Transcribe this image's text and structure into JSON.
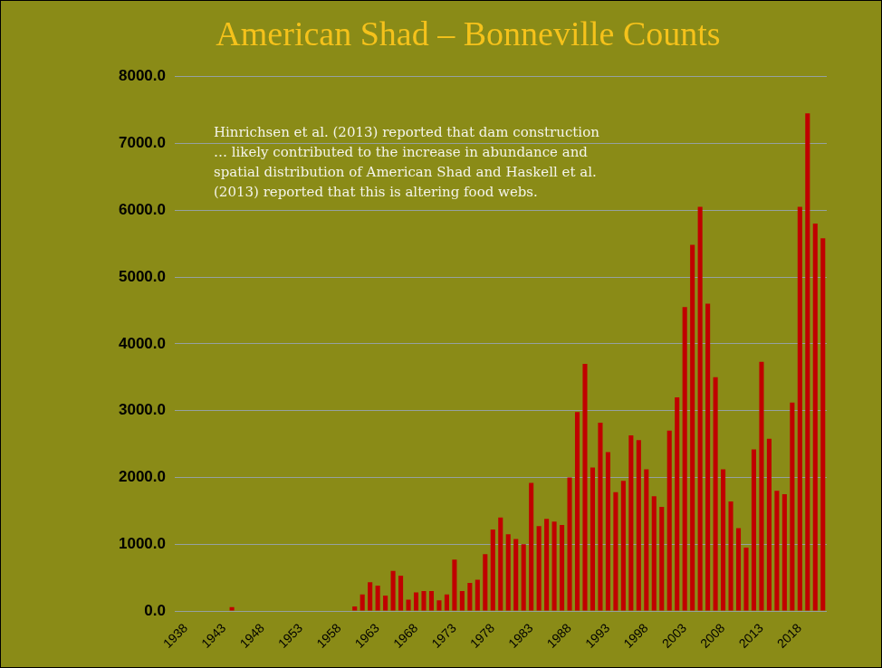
{
  "chart_data": {
    "type": "bar",
    "title": "American Shad – Bonneville Counts",
    "annotation": "Hinrichsen et al. (2013) reported that dam construction … likely contributed to the increase in abundance and spatial distribution of American Shad and Haskell et al. (2013) reported that this is altering food webs.",
    "categories": [
      "1938",
      null,
      null,
      null,
      null,
      "1943",
      null,
      null,
      null,
      null,
      "1948",
      null,
      null,
      null,
      null,
      "1953",
      null,
      null,
      null,
      null,
      "1958",
      null,
      null,
      null,
      null,
      "1963",
      null,
      null,
      null,
      null,
      "1968",
      null,
      null,
      null,
      null,
      "1973",
      null,
      null,
      null,
      null,
      "1978",
      null,
      null,
      null,
      null,
      "1983",
      null,
      null,
      null,
      null,
      "1988",
      null,
      null,
      null,
      null,
      "1993",
      null,
      null,
      null,
      null,
      "1998",
      null,
      null,
      null,
      null,
      "2003",
      null,
      null,
      null,
      null,
      "2008",
      null,
      null,
      null,
      null,
      "2013",
      null,
      null,
      null,
      null,
      "2018",
      null,
      null,
      null
    ],
    "values": [
      0,
      0,
      0,
      0,
      0,
      0,
      60,
      0,
      0,
      0,
      0,
      0,
      0,
      0,
      0,
      0,
      0,
      0,
      0,
      0,
      0,
      0,
      70,
      250,
      430,
      380,
      230,
      600,
      530,
      170,
      280,
      300,
      300,
      160,
      250,
      770,
      300,
      420,
      470,
      850,
      1220,
      1400,
      1150,
      1080,
      1000,
      1920,
      1270,
      1380,
      1340,
      1290,
      2000,
      2980,
      3700,
      2150,
      2820,
      2380,
      1780,
      1950,
      2630,
      2560,
      2120,
      1720,
      1560,
      2700,
      3200,
      4550,
      5480,
      6050,
      4600,
      3500,
      2120,
      1640,
      1240,
      950,
      2420,
      3730,
      2580,
      1800,
      1750,
      3120,
      6050,
      7450,
      5800,
      5580
    ],
    "color": "#c00000",
    "ylim": [
      0,
      8000
    ],
    "yticks": [
      {
        "value": 0,
        "label": "0.0"
      },
      {
        "value": 1000,
        "label": "1000.0"
      },
      {
        "value": 2000,
        "label": "2000.0"
      },
      {
        "value": 3000,
        "label": "3000.0"
      },
      {
        "value": 4000,
        "label": "4000.0"
      },
      {
        "value": 5000,
        "label": "5000.0"
      },
      {
        "value": 6000,
        "label": "6000.0"
      },
      {
        "value": 7000,
        "label": "7000.0"
      },
      {
        "value": 8000,
        "label": "8000.0"
      }
    ],
    "grid": true
  }
}
